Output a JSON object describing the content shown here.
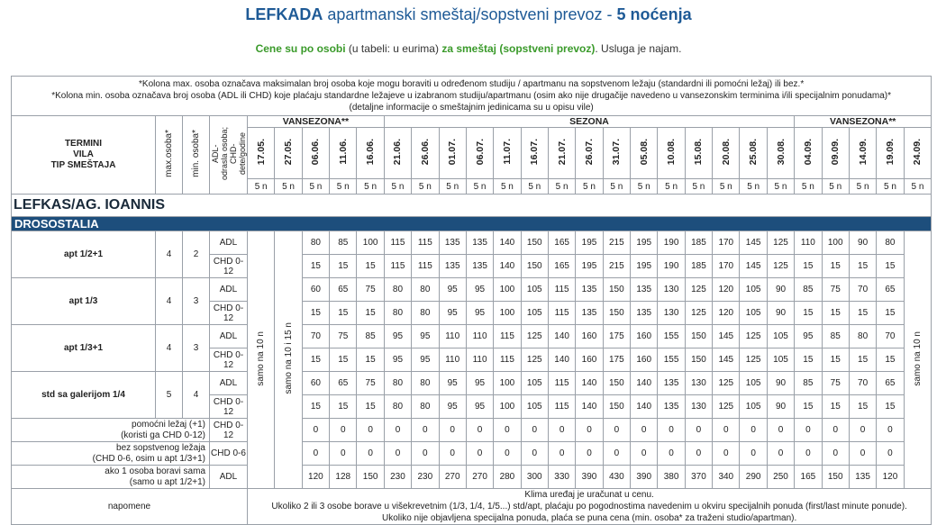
{
  "title": {
    "prefix": "LEFKADA",
    "middle": " apartmanski smeštaj/sopstveni prevoz - ",
    "suffix": "5 noćenja"
  },
  "subtitle": {
    "part1": "Cene su po osobi",
    "part2": " (u tabeli: u eurima) ",
    "part3": "za smeštaj (sopstveni prevoz)",
    "part4": ". Usluga je najam."
  },
  "notes": {
    "line1": "*Kolona max. osoba označava maksimalan broj osoba koje mogu boraviti u određenom studiju / apartmanu na sopstvenom ležaju (standardni ili pomoćni ležaj) ili bez.*",
    "line2": "*Kolona min. osoba označava broj osoba (ADL ili CHD) koje plaćaju standardne ležajeve u izabranom studiju/apartmanu (osim ako nije drugačije navedeno u vansezonskim terminima i/ili specijalnim ponudama)*",
    "line3": "(detaljne informacije o smeštajnim jedinicama su u opisu vile)"
  },
  "header": {
    "left": [
      "TERMINI",
      "VILA",
      "TIP SMEŠTAJA"
    ],
    "max_osoba": "max.osoba*",
    "min_osoba": "min. osoba*",
    "adl_chd": [
      "ADL-",
      "odrasla osoba;",
      "CHD-",
      "dete/godine"
    ],
    "season_pre": "VANSEZONA**",
    "season_main": "SEZONA",
    "season_post": "VANSEZONA**"
  },
  "dates": [
    "17.05.",
    "27.05.",
    "06.06.",
    "11.06.",
    "16.06.",
    "21.06.",
    "26.06.",
    "01.07.",
    "06.07.",
    "11.07.",
    "16.07.",
    "21.07.",
    "26.07.",
    "31.07.",
    "05.08.",
    "10.08.",
    "15.08.",
    "20.08.",
    "25.08.",
    "30.08.",
    "04.09.",
    "09.09.",
    "14.09.",
    "19.09.",
    "24.09."
  ],
  "nights_label": "5 n",
  "location": "LEFKAS/AG. IOANNIS",
  "villa": "DROSOSTALIA",
  "side_notes": {
    "col1": "samo na 10 n",
    "col2": "samo na 10 i 15 n",
    "col_last": "samo na 10 n"
  },
  "rooms": [
    {
      "name": "apt 1/2+1",
      "max": "4",
      "min": "2",
      "adl_label": "ADL",
      "chd_label": "CHD 0-12",
      "adl": [
        "80",
        "85",
        "100",
        "115",
        "115",
        "135",
        "135",
        "140",
        "150",
        "165",
        "195",
        "215",
        "195",
        "190",
        "185",
        "170",
        "145",
        "125",
        "110",
        "100",
        "90",
        "80"
      ],
      "chd": [
        "15",
        "15",
        "15",
        "115",
        "115",
        "135",
        "135",
        "140",
        "150",
        "165",
        "195",
        "215",
        "195",
        "190",
        "185",
        "170",
        "145",
        "125",
        "15",
        "15",
        "15",
        "15"
      ]
    },
    {
      "name": "apt 1/3",
      "max": "4",
      "min": "3",
      "adl_label": "ADL",
      "chd_label": "CHD 0-12",
      "adl": [
        "60",
        "65",
        "75",
        "80",
        "80",
        "95",
        "95",
        "100",
        "105",
        "115",
        "135",
        "150",
        "135",
        "130",
        "125",
        "120",
        "105",
        "90",
        "85",
        "75",
        "70",
        "65"
      ],
      "chd": [
        "15",
        "15",
        "15",
        "80",
        "80",
        "95",
        "95",
        "100",
        "105",
        "115",
        "135",
        "150",
        "135",
        "130",
        "125",
        "120",
        "105",
        "90",
        "15",
        "15",
        "15",
        "15"
      ]
    },
    {
      "name": "apt 1/3+1",
      "max": "4",
      "min": "3",
      "adl_label": "ADL",
      "chd_label": "CHD 0-12",
      "adl": [
        "70",
        "75",
        "85",
        "95",
        "95",
        "110",
        "110",
        "115",
        "125",
        "140",
        "160",
        "175",
        "160",
        "155",
        "150",
        "145",
        "125",
        "105",
        "95",
        "85",
        "80",
        "70"
      ],
      "chd": [
        "15",
        "15",
        "15",
        "95",
        "95",
        "110",
        "110",
        "115",
        "125",
        "140",
        "160",
        "175",
        "160",
        "155",
        "150",
        "145",
        "125",
        "105",
        "15",
        "15",
        "15",
        "15"
      ]
    },
    {
      "name": "std sa galerijom 1/4",
      "max": "5",
      "min": "4",
      "adl_label": "ADL",
      "chd_label": "CHD 0-12",
      "adl": [
        "60",
        "65",
        "75",
        "80",
        "80",
        "95",
        "95",
        "100",
        "105",
        "115",
        "140",
        "150",
        "140",
        "135",
        "130",
        "125",
        "105",
        "90",
        "85",
        "75",
        "70",
        "65"
      ],
      "chd": [
        "15",
        "15",
        "15",
        "80",
        "80",
        "95",
        "95",
        "100",
        "105",
        "115",
        "140",
        "150",
        "140",
        "135",
        "130",
        "125",
        "105",
        "90",
        "15",
        "15",
        "15",
        "15"
      ]
    }
  ],
  "extras": [
    {
      "label1": "pomoćni ležaj (+1)",
      "label2": "(koristi ga CHD 0-12)",
      "type": "CHD 0-12",
      "values": [
        "0",
        "0",
        "0",
        "0",
        "0",
        "0",
        "0",
        "0",
        "0",
        "0",
        "0",
        "0",
        "0",
        "0",
        "0",
        "0",
        "0",
        "0",
        "0",
        "0",
        "0",
        "0"
      ]
    },
    {
      "label1": "bez sopstvenog ležaja",
      "label2": "(CHD 0-6, osim u apt 1/3+1)",
      "type": "CHD 0-6",
      "values": [
        "0",
        "0",
        "0",
        "0",
        "0",
        "0",
        "0",
        "0",
        "0",
        "0",
        "0",
        "0",
        "0",
        "0",
        "0",
        "0",
        "0",
        "0",
        "0",
        "0",
        "0",
        "0"
      ]
    },
    {
      "label1": "ako 1 osoba boravi sama",
      "label2": "(samo u apt 1/2+1)",
      "type": "ADL",
      "values": [
        "120",
        "128",
        "150",
        "230",
        "230",
        "270",
        "270",
        "280",
        "300",
        "330",
        "390",
        "430",
        "390",
        "380",
        "370",
        "340",
        "290",
        "250",
        "165",
        "150",
        "135",
        "120"
      ]
    }
  ],
  "footer": {
    "label": "napomene",
    "line1": "Klima uređaj je uračunat u cenu.",
    "line2": "Ukoliko 2 ili 3 osobe borave u višekrevetnim (1/3, 1/4, 1/5...) std/apt, plaćaju po pogodnostima navedenim u okviru specijalnih ponuda (first/last minute ponude).",
    "line3": "Ukoliko nije objavljena specijalna ponuda, plaća se puna cena (min. osoba* za traženi studio/apartman)."
  }
}
